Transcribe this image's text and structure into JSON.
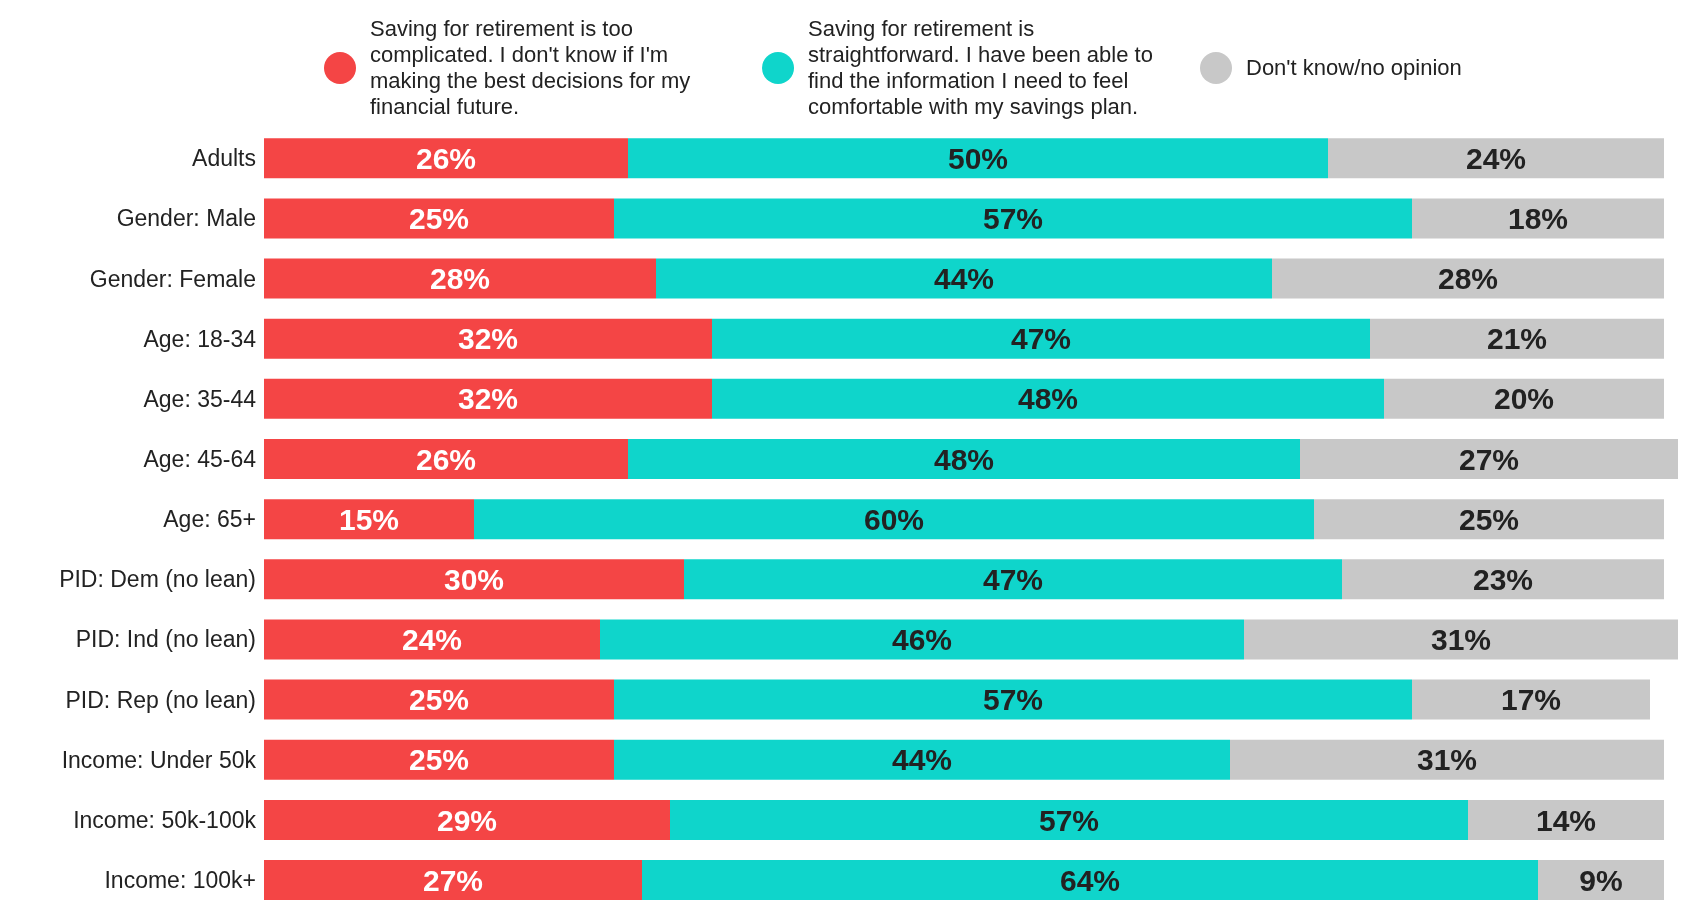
{
  "chart_data": {
    "type": "bar",
    "orientation": "horizontal",
    "stacked": true,
    "legend": "top",
    "categories": [
      "Adults",
      "Gender: Male",
      "Gender: Female",
      "Age: 18-34",
      "Age: 35-44",
      "Age: 45-64",
      "Age: 65+",
      "PID: Dem (no lean)",
      "PID: Ind (no lean)",
      "PID: Rep (no lean)",
      "Income: Under 50k",
      "Income: 50k-100k",
      "Income: 100k+"
    ],
    "series": [
      {
        "name": "Saving for retirement is too complicated. I don't know if I'm making the best decisions for my financial future.",
        "color": "#f44545",
        "values": [
          26,
          25,
          28,
          32,
          32,
          26,
          15,
          30,
          24,
          25,
          25,
          29,
          27
        ],
        "value_labels": [
          "26%",
          "25%",
          "28%",
          "32%",
          "32%",
          "26%",
          "15%",
          "30%",
          "24%",
          "25%",
          "25%",
          "29%",
          "27%"
        ]
      },
      {
        "name": "Saving for retirement is straightforward. I have been able to find the information I need to feel comfortable with my savings plan.",
        "color": "#0fd5cb",
        "values": [
          50,
          57,
          44,
          47,
          48,
          48,
          60,
          47,
          46,
          57,
          44,
          57,
          64
        ],
        "value_labels": [
          "50%",
          "57%",
          "44%",
          "47%",
          "48%",
          "48%",
          "60%",
          "47%",
          "46%",
          "57%",
          "44%",
          "57%",
          "64%"
        ]
      },
      {
        "name": "Don't know/no opinion",
        "color": "#c8c8c8",
        "values": [
          24,
          18,
          28,
          21,
          20,
          27,
          25,
          23,
          31,
          17,
          31,
          14,
          9
        ],
        "value_labels": [
          "24%",
          "18%",
          "28%",
          "21%",
          "20%",
          "27%",
          "25%",
          "23%",
          "31%",
          "17%",
          "31%",
          "14%",
          "9%"
        ]
      }
    ]
  }
}
